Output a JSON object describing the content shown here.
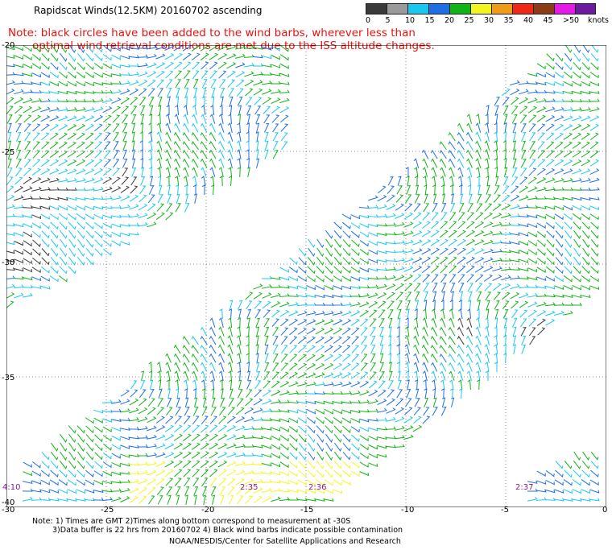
{
  "header": {
    "title": "Rapidscat Winds(12.5KM) 20160702 ascending",
    "note_line1": "Note: black circles have been added to the wind barbs, wherever less than",
    "note_line2": "optimal wind retrieval conditions are met due to the ISS altitude changes."
  },
  "legend": {
    "labels": [
      "0",
      "5",
      "10",
      "15",
      "20",
      "25",
      "30",
      "35",
      "40",
      "45",
      ">50"
    ],
    "unit": "knots",
    "colors": [
      "#3a3a3a",
      "#9a9a9a",
      "#19c8f0",
      "#1e6ee6",
      "#10b416",
      "#f5f51e",
      "#f09c14",
      "#f02814",
      "#8c3c14",
      "#e619e6",
      "#6e1aa0"
    ]
  },
  "map": {
    "lon_ticks": [
      "-30",
      "-25",
      "-20",
      "-15",
      "-10",
      "-5",
      "0"
    ],
    "lat_ticks": [
      "-20",
      "-25",
      "-30",
      "-35",
      "-40"
    ],
    "pass_times": [
      "4:10",
      "2:35",
      "2:36",
      "2:37"
    ]
  },
  "footer": {
    "note1": "Note: 1) Times are GMT 2)Times along bottom correspond to measurement at -30S",
    "note2": "3)Data buffer is 22 hrs from 20160702 4) Black wind barbs indicate possible contamination",
    "credit": "NOAA/NESDIS/Center for Satellite Applications and Research"
  }
}
